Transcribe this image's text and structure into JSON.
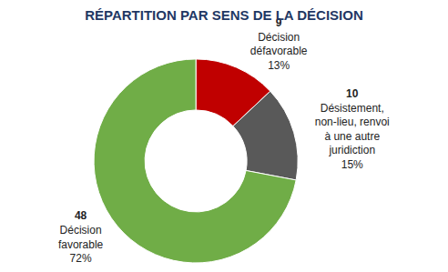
{
  "chart_data": {
    "type": "pie",
    "title": "RÉPARTITION PAR SENS DE LA DÉCISION",
    "categories": [
      "Décision défavorable",
      "Désistement, non-lieu, renvoi à une autre juridiction",
      "Décision favorable"
    ],
    "values": [
      13,
      15,
      72
    ],
    "value_labels": [
      "13%",
      "15%",
      "72%"
    ],
    "counts": [
      9,
      10,
      48
    ],
    "colors": [
      "#c00000",
      "#595959",
      "#70ad47"
    ],
    "data_labels": true
  }
}
